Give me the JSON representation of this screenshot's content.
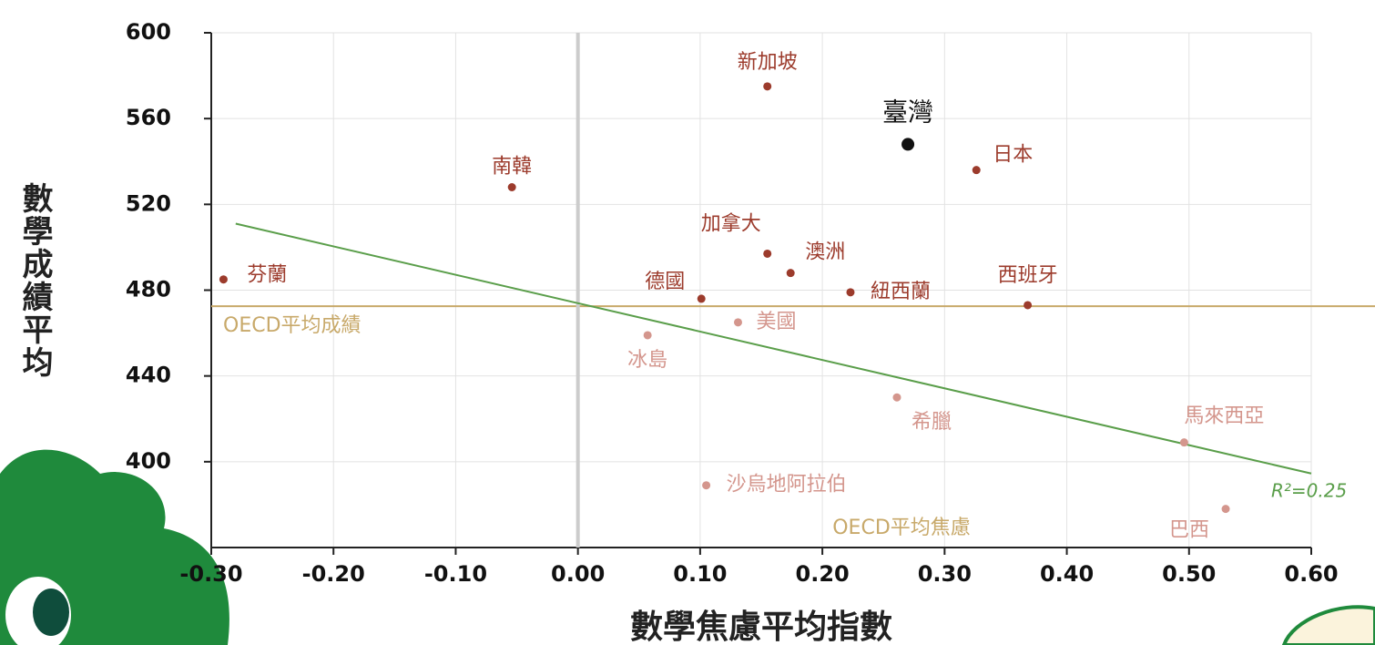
{
  "chart_data": {
    "type": "scatter",
    "x_label": "數學焦慮平均指數",
    "y_label": "數學成績平均",
    "xlim": [
      -0.3,
      0.6
    ],
    "ylim": [
      360,
      600
    ],
    "xticks": [
      {
        "value": -0.3,
        "label": "-0.30"
      },
      {
        "value": -0.2,
        "label": "-0.20"
      },
      {
        "value": -0.1,
        "label": "-0.10"
      },
      {
        "value": 0,
        "label": "0.00"
      },
      {
        "value": 0.1,
        "label": "0.10"
      },
      {
        "value": 0.2,
        "label": "0.20"
      },
      {
        "value": 0.3,
        "label": "0.30"
      },
      {
        "value": 0.4,
        "label": "0.40"
      },
      {
        "value": 0.5,
        "label": "0.50"
      },
      {
        "value": 0.6,
        "label": "0.60"
      }
    ],
    "yticks": [
      400,
      440,
      480,
      520,
      560,
      600
    ],
    "grid": true,
    "points": [
      {
        "label": "新加坡",
        "x": 0.155,
        "y": 575,
        "color": "#9c3b2c"
      },
      {
        "label": "臺灣",
        "x": 0.27,
        "y": 548,
        "color": "#111111"
      },
      {
        "label": "日本",
        "x": 0.326,
        "y": 536,
        "color": "#9c3b2c"
      },
      {
        "label": "南韓",
        "x": -0.054,
        "y": 528,
        "color": "#9c3b2c"
      },
      {
        "label": "加拿大",
        "x": 0.155,
        "y": 497,
        "color": "#9c3b2c"
      },
      {
        "label": "澳洲",
        "x": 0.174,
        "y": 488,
        "color": "#9c3b2c"
      },
      {
        "label": "德國",
        "x": 0.101,
        "y": 476,
        "color": "#9c3b2c"
      },
      {
        "label": "紐西蘭",
        "x": 0.223,
        "y": 479,
        "color": "#9c3b2c"
      },
      {
        "label": "西班牙",
        "x": 0.368,
        "y": 473,
        "color": "#9c3b2c"
      },
      {
        "label": "芬蘭",
        "x": -0.29,
        "y": 485,
        "color": "#9c3b2c"
      },
      {
        "label": "美國",
        "x": 0.131,
        "y": 465,
        "color": "#d4968d"
      },
      {
        "label": "冰島",
        "x": 0.057,
        "y": 459,
        "color": "#d4968d"
      },
      {
        "label": "希臘",
        "x": 0.261,
        "y": 430,
        "color": "#d4968d"
      },
      {
        "label": "馬來西亞",
        "x": 0.496,
        "y": 409,
        "color": "#d4968d"
      },
      {
        "label": "沙烏地阿拉伯",
        "x": 0.105,
        "y": 389,
        "color": "#d4968d"
      },
      {
        "label": "巴西",
        "x": 0.53,
        "y": 378,
        "color": "#d4968d"
      }
    ],
    "reference_lines": [
      {
        "label": "OECD平均成績",
        "axis": "y",
        "value": 472.5,
        "color": "#c8a96a"
      },
      {
        "label": "OECD平均焦慮",
        "axis": "x",
        "value": 0,
        "color": "#cccccc"
      }
    ],
    "trendline": {
      "x": [
        -0.28,
        0.6
      ],
      "y": [
        511,
        394.5
      ],
      "label": "R²=0.25",
      "color": "#5a9e4a"
    }
  }
}
